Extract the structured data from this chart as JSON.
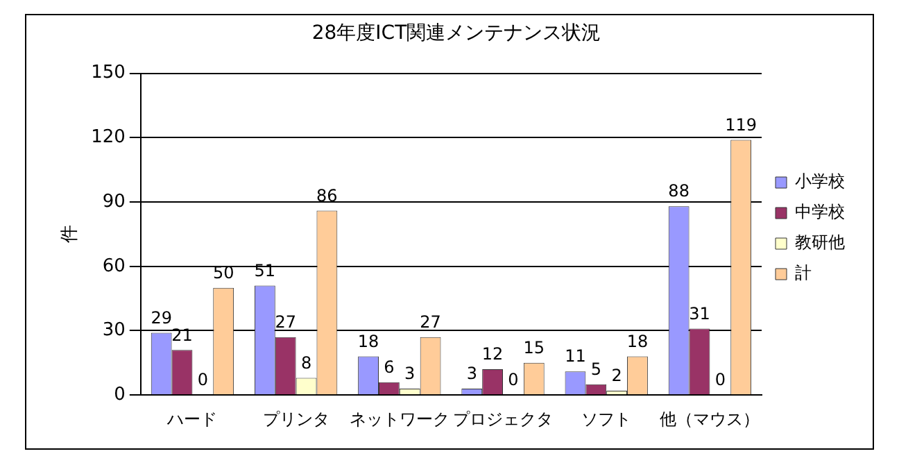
{
  "chart_data": {
    "type": "bar",
    "title": "28年度ICT関連メンテナンス状況",
    "ylabel": "件",
    "categories": [
      "ハード",
      "プリンタ",
      "ネットワーク",
      "プロジェクタ",
      "ソフト",
      "他（マウス）"
    ],
    "series": [
      {
        "name": "小学校",
        "color": "#9999ff",
        "values": [
          29,
          51,
          18,
          3,
          11,
          88
        ]
      },
      {
        "name": "中学校",
        "color": "#993366",
        "values": [
          21,
          27,
          6,
          12,
          5,
          31
        ]
      },
      {
        "name": "教研他",
        "color": "#ffffcc",
        "values": [
          0,
          8,
          3,
          0,
          2,
          0
        ]
      },
      {
        "name": "計",
        "color": "#ffcc99",
        "values": [
          50,
          86,
          27,
          15,
          18,
          119
        ]
      }
    ],
    "ylim": [
      0,
      150
    ],
    "yticks": [
      0,
      30,
      60,
      90,
      120,
      150
    ],
    "grid": "y",
    "legend": "right",
    "data_labels": true
  }
}
